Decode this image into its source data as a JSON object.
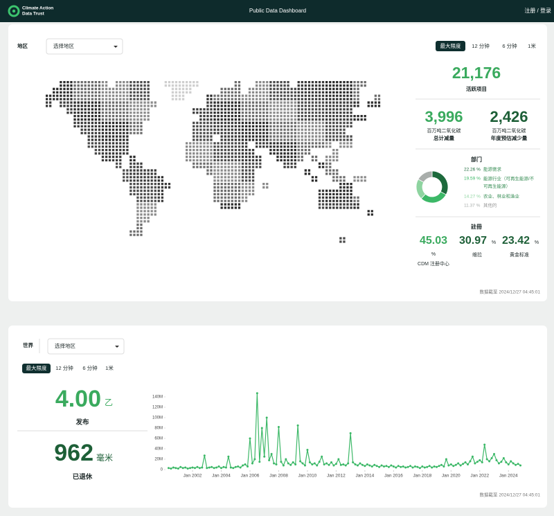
{
  "header": {
    "logo_line1": "Climate Action",
    "logo_line2": "Data Trust",
    "title": "Public Data Dashboard",
    "auth": "注册 / 登录"
  },
  "overview": {
    "filter_label": "地区",
    "select": "选择地区",
    "tabs": [
      "最大限度",
      "12 分钟",
      "6 分钟",
      "1米"
    ],
    "active_projects": {
      "value": "21,176",
      "label": "活跃项目"
    },
    "total_reduction": {
      "value": "3,996",
      "unit": "百万吨二氧化碳",
      "label": "总计减量"
    },
    "annual_reduction": {
      "value": "2,426",
      "unit": "百万吨二氧化碳",
      "label": "年度预估减少量"
    },
    "registry": {
      "title": "註冊",
      "items": [
        {
          "value": "45.03",
          "unit": "%",
          "label": "CDM 注册中心"
        },
        {
          "value": "30.97",
          "unit": "%",
          "label": "维拉"
        },
        {
          "value": "23.42",
          "unit": "%",
          "label": "黄金标准"
        }
      ]
    },
    "updated": "数据截至 2024/12/27 04:45:01"
  },
  "credits": {
    "filter_label": "世界",
    "select": "选择地区",
    "tabs": [
      "最大限度",
      "12 分钟",
      "6 分钟",
      "1米"
    ],
    "issued": {
      "value": "4.00",
      "unit": "乙",
      "label": "发布"
    },
    "retired": {
      "value": "962",
      "unit": "毫米",
      "label": "已退休"
    },
    "updated": "数据截至 2024/12/27 04:45:01"
  },
  "chart_data": [
    {
      "type": "pie",
      "title": "部门",
      "categories": [
        "能源需求",
        "能源行业（可再生能源/不可再生能源）",
        "农业、林业和渔业",
        "其他的"
      ],
      "values": [
        22.26,
        19.59,
        14.27,
        11.37
      ],
      "value_labels": [
        "22.26 %",
        "19.59 %",
        "14.27 %",
        "11.37 %"
      ],
      "colors": [
        "#1d6a3c",
        "#3cb867",
        "#8ed4a0",
        "#a9aeab"
      ]
    },
    {
      "type": "line",
      "color": "#3cb867",
      "x": [
        "2000-05",
        "2000-07",
        "2000-09",
        "2000-11",
        "2001-01",
        "2001-03",
        "2001-05",
        "2001-07",
        "2001-09",
        "2001-11",
        "2002-01",
        "2002-03",
        "2002-05",
        "2002-07",
        "2002-09",
        "2002-11",
        "2003-01",
        "2003-03",
        "2003-05",
        "2003-07",
        "2003-09",
        "2003-11",
        "2004-01",
        "2004-03",
        "2004-05",
        "2004-07",
        "2004-09",
        "2004-11",
        "2005-01",
        "2005-03",
        "2005-05",
        "2005-07",
        "2005-09",
        "2005-11",
        "2006-01",
        "2006-03",
        "2006-05",
        "2006-07",
        "2006-09",
        "2006-11",
        "2007-01",
        "2007-03",
        "2007-05",
        "2007-07",
        "2007-09",
        "2007-11",
        "2008-01",
        "2008-03",
        "2008-05",
        "2008-07",
        "2008-09",
        "2008-11",
        "2009-01",
        "2009-03",
        "2009-05",
        "2009-07",
        "2009-09",
        "2009-11",
        "2010-01",
        "2010-03",
        "2010-05",
        "2010-07",
        "2010-09",
        "2010-11",
        "2011-01",
        "2011-03",
        "2011-05",
        "2011-07",
        "2011-09",
        "2011-11",
        "2012-01",
        "2012-03",
        "2012-05",
        "2012-07",
        "2012-09",
        "2012-11",
        "2013-01",
        "2013-03",
        "2013-05",
        "2013-07",
        "2013-09",
        "2013-11",
        "2014-01",
        "2014-03",
        "2014-05",
        "2014-07",
        "2014-09",
        "2014-11",
        "2015-01",
        "2015-03",
        "2015-05",
        "2015-07",
        "2015-09",
        "2015-11",
        "2016-01",
        "2016-03",
        "2016-05",
        "2016-07",
        "2016-09",
        "2016-11",
        "2017-01",
        "2017-03",
        "2017-05",
        "2017-07",
        "2017-09",
        "2017-11",
        "2018-01",
        "2018-03",
        "2018-05",
        "2018-07",
        "2018-09",
        "2018-11",
        "2019-01",
        "2019-03",
        "2019-05",
        "2019-07",
        "2019-09",
        "2019-11",
        "2020-01",
        "2020-03",
        "2020-05",
        "2020-07",
        "2020-09",
        "2020-11",
        "2021-01",
        "2021-03",
        "2021-05",
        "2021-07",
        "2021-09",
        "2021-11",
        "2022-01",
        "2022-03",
        "2022-05",
        "2022-07",
        "2022-09",
        "2022-11",
        "2023-01",
        "2023-03",
        "2023-05",
        "2023-07",
        "2023-09",
        "2023-11",
        "2024-01",
        "2024-03",
        "2024-05",
        "2024-07",
        "2024-09",
        "2024-11"
      ],
      "values": [
        3000000,
        2000000,
        4000000,
        3000000,
        2000000,
        5000000,
        3000000,
        4000000,
        2000000,
        3000000,
        4000000,
        3000000,
        5000000,
        3000000,
        4000000,
        27000000,
        3000000,
        4000000,
        5000000,
        3000000,
        4000000,
        6000000,
        3000000,
        5000000,
        4000000,
        25000000,
        4000000,
        3000000,
        5000000,
        6000000,
        4000000,
        8000000,
        10000000,
        6000000,
        60000000,
        12000000,
        20000000,
        147000000,
        15000000,
        80000000,
        25000000,
        100000000,
        18000000,
        30000000,
        12000000,
        10000000,
        82000000,
        15000000,
        8000000,
        20000000,
        12000000,
        9000000,
        14000000,
        10000000,
        85000000,
        16000000,
        12000000,
        8000000,
        38000000,
        14000000,
        10000000,
        12000000,
        8000000,
        15000000,
        25000000,
        10000000,
        12000000,
        9000000,
        14000000,
        8000000,
        11000000,
        20000000,
        9000000,
        10000000,
        8000000,
        12000000,
        70000000,
        14000000,
        10000000,
        8000000,
        12000000,
        9000000,
        7000000,
        10000000,
        8000000,
        6000000,
        9000000,
        7000000,
        5000000,
        8000000,
        6000000,
        7000000,
        5000000,
        8000000,
        6000000,
        4000000,
        7000000,
        5000000,
        6000000,
        4000000,
        5000000,
        7000000,
        4000000,
        6000000,
        5000000,
        3000000,
        6000000,
        4000000,
        5000000,
        7000000,
        4000000,
        6000000,
        5000000,
        7000000,
        9000000,
        6000000,
        20000000,
        8000000,
        10000000,
        7000000,
        9000000,
        12000000,
        8000000,
        11000000,
        14000000,
        10000000,
        16000000,
        25000000,
        12000000,
        15000000,
        18000000,
        14000000,
        48000000,
        20000000,
        16000000,
        22000000,
        30000000,
        18000000,
        12000000,
        15000000,
        22000000,
        14000000,
        10000000,
        16000000,
        12000000,
        9000000,
        11000000,
        8000000
      ],
      "xlim": [
        "2000-03",
        "2025-01"
      ],
      "xticks": [
        {
          "value": "2002-01",
          "label": "Jan 2002"
        },
        {
          "value": "2004-01",
          "label": "Jan 2004"
        },
        {
          "value": "2006-01",
          "label": "Jan 2006"
        },
        {
          "value": "2008-01",
          "label": "Jan 2008"
        },
        {
          "value": "2010-01",
          "label": "Jan 2010"
        },
        {
          "value": "2012-01",
          "label": "Jan 2012"
        },
        {
          "value": "2014-01",
          "label": "Jan 2014"
        },
        {
          "value": "2016-01",
          "label": "Jan 2016"
        },
        {
          "value": "2018-01",
          "label": "Jan 2018"
        },
        {
          "value": "2020-01",
          "label": "Jan 2020"
        },
        {
          "value": "2022-01",
          "label": "Jan 2022"
        },
        {
          "value": "2024-01",
          "label": "Jan 2024"
        }
      ],
      "ylim": [
        0,
        150000000
      ],
      "yticks": [
        0,
        {
          "value": 20000000,
          "label": "20M"
        },
        {
          "value": 40000000,
          "label": "40M"
        },
        {
          "value": 60000000,
          "label": "60M"
        },
        {
          "value": 80000000,
          "label": "80M"
        },
        {
          "value": 100000000,
          "label": "100M"
        },
        {
          "value": 120000000,
          "label": "120M"
        },
        {
          "value": 140000000,
          "label": "140M"
        }
      ]
    }
  ]
}
